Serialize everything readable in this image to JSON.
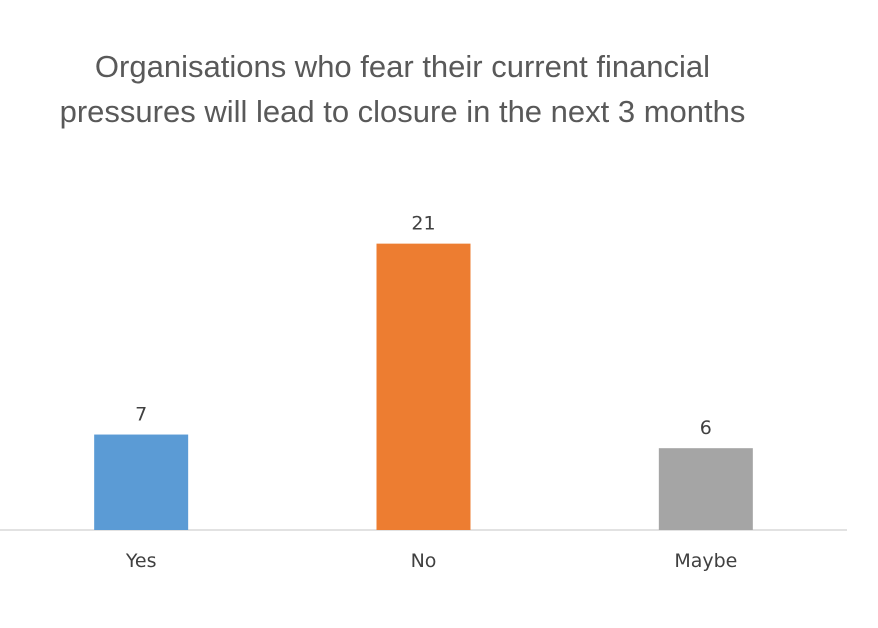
{
  "chart_data": {
    "type": "bar",
    "title": "Organisations who fear their current financial pressures will lead to closure in the next 3 months",
    "categories": [
      "Yes",
      "No",
      "Maybe"
    ],
    "values": [
      7,
      21,
      6
    ],
    "colors": [
      "#5b9bd5",
      "#ed7d31",
      "#a5a5a5"
    ],
    "data_labels": [
      "7",
      "21",
      "6"
    ],
    "ylim": [
      0,
      22
    ],
    "grid": false,
    "legend": "none"
  }
}
